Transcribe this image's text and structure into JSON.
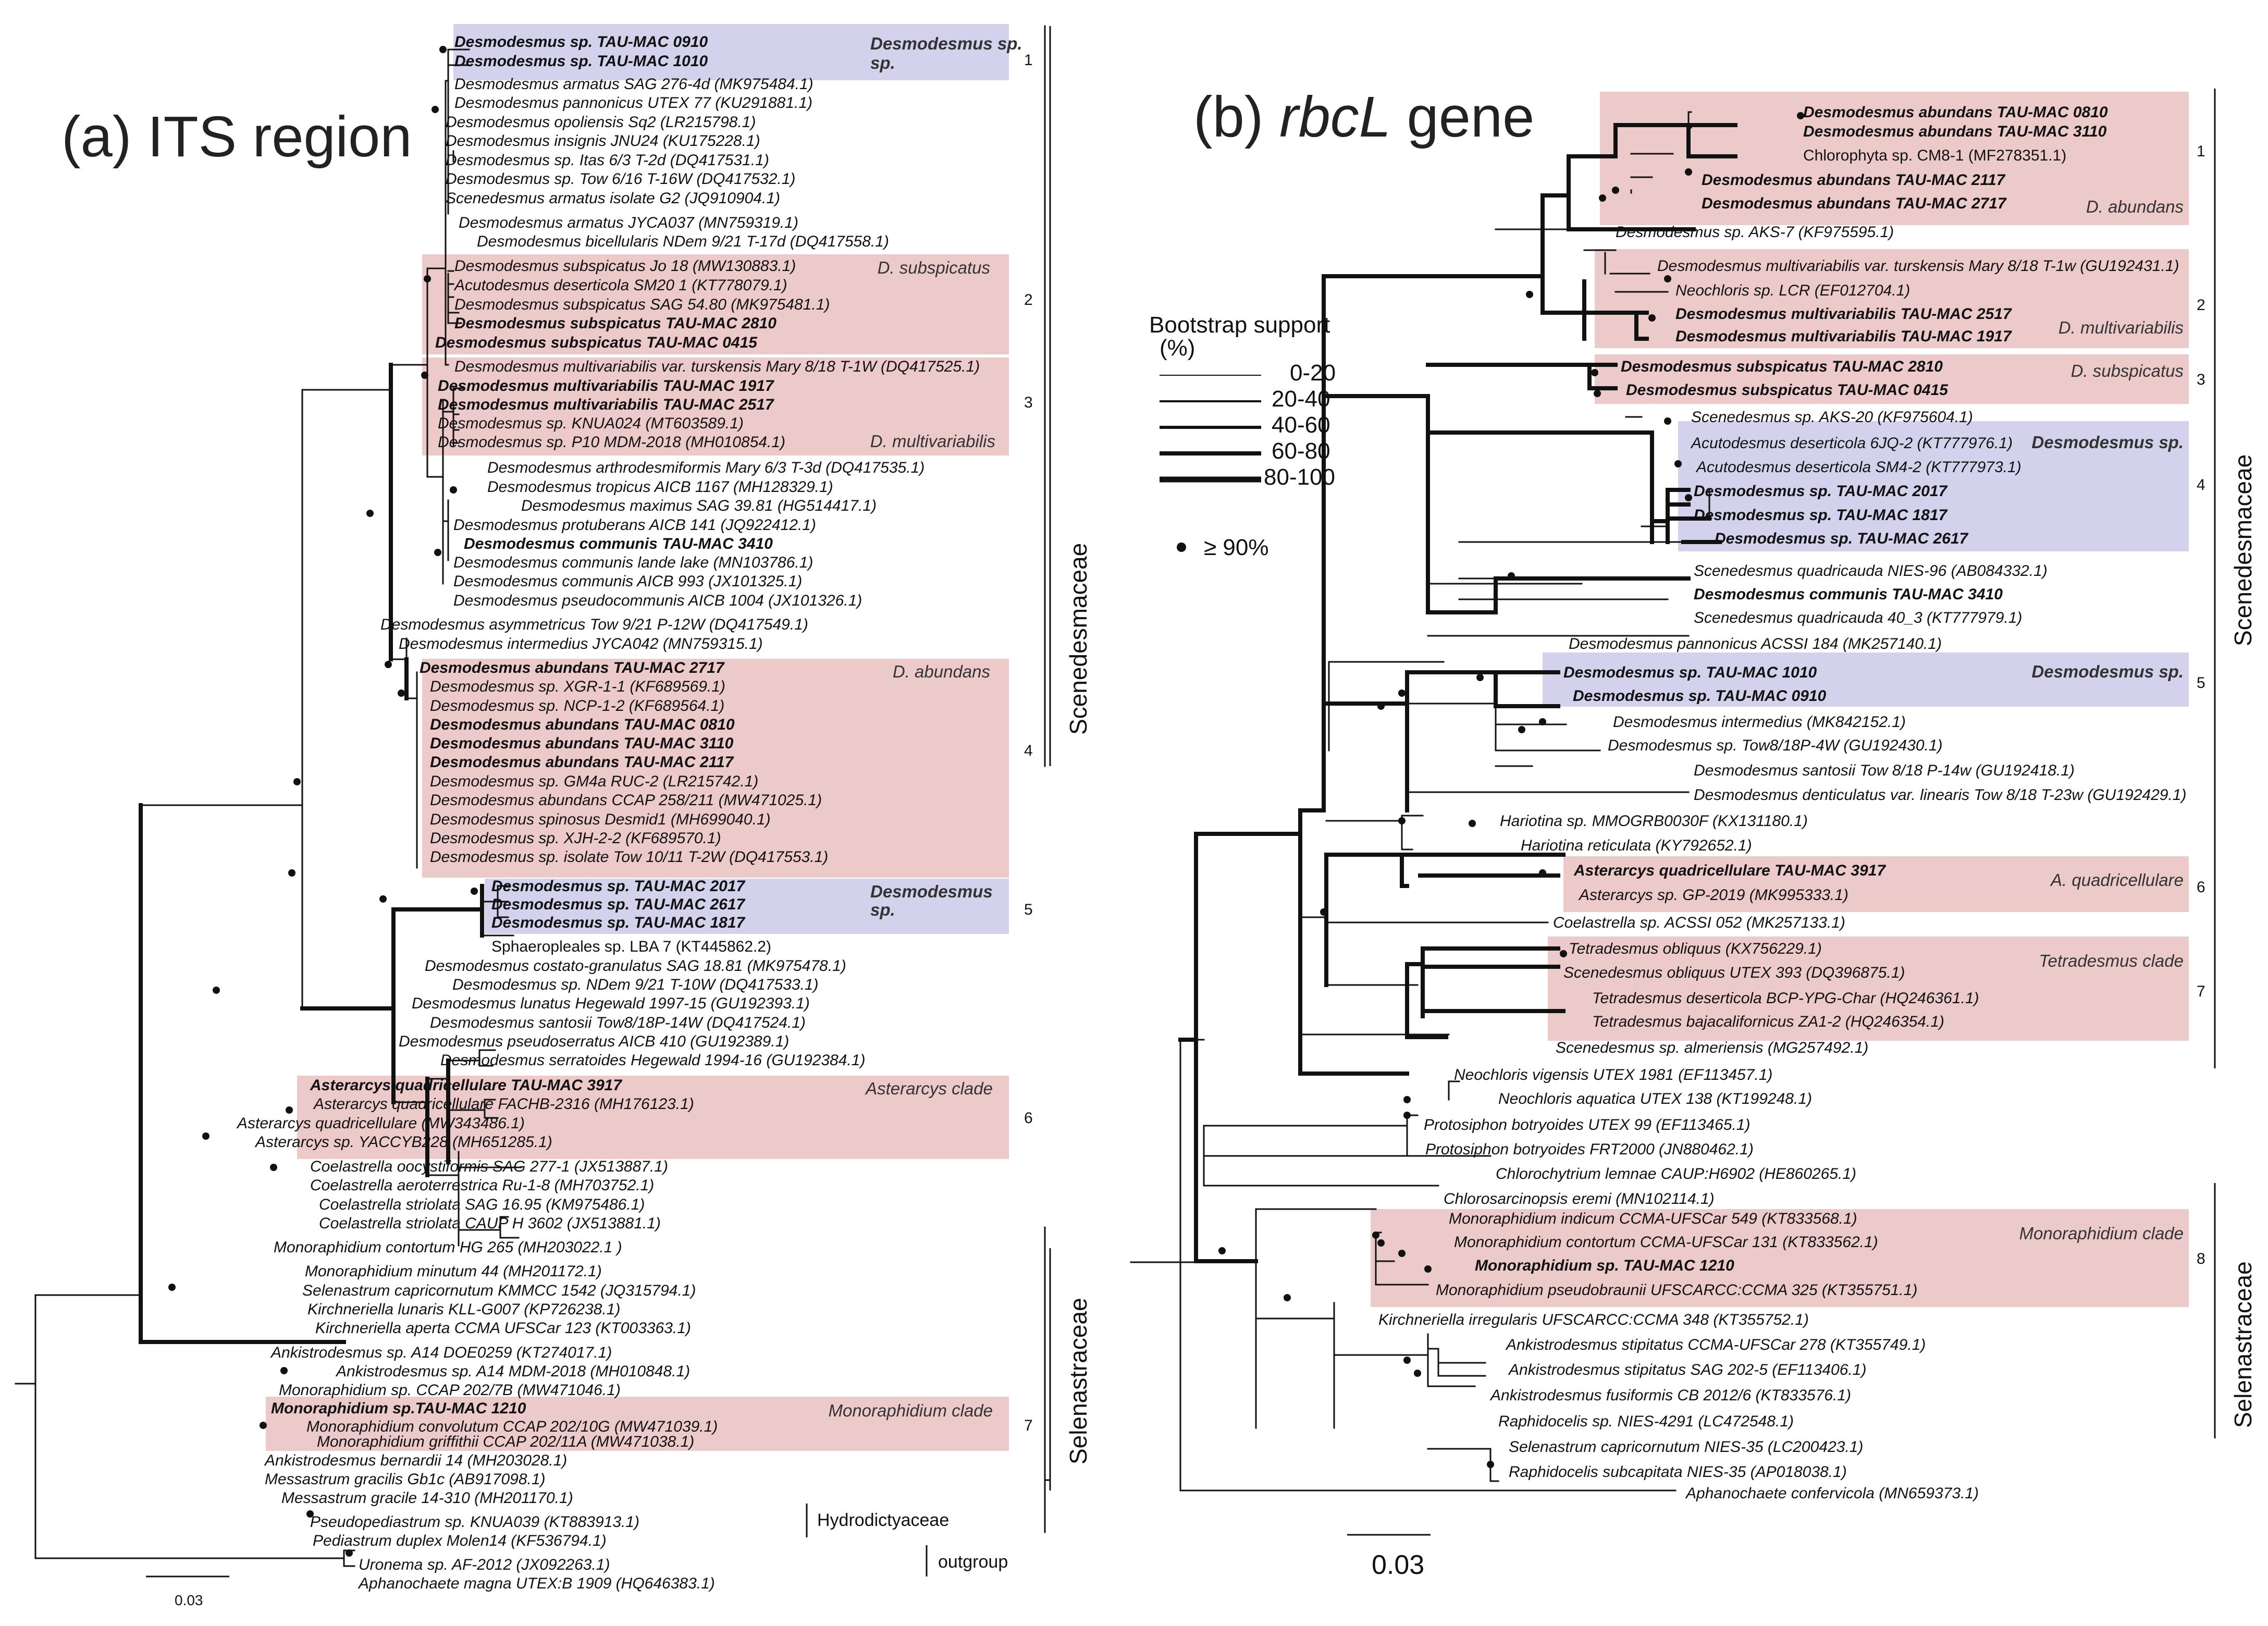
{
  "colors": {
    "pink": "#eccaca",
    "blue": "#d4d1ec",
    "line": "#111111"
  },
  "panel_a": {
    "title_prefix": "(a) ",
    "title_main": "ITS region",
    "scale_label": "0.03",
    "leaves": [
      "Desmodesmus sp. TAU-MAC 0910",
      "Desmodesmus sp. TAU-MAC 1010",
      "Desmodesmus armatus SAG 276-4d (MK975484.1)",
      "Desmodesmus pannonicus UTEX 77 (KU291881.1)",
      "Desmodesmus opoliensis Sq2 (LR215798.1)",
      "Desmodesmus insignis JNU24 (KU175228.1)",
      "Desmodesmus sp. Itas 6/3 T-2d (DQ417531.1)",
      "Desmodesmus sp. Tow 6/16 T-16W (DQ417532.1)",
      "Scenedesmus armatus isolate G2 (JQ910904.1)",
      "Desmodesmus armatus JYCA037 (MN759319.1)",
      "Desmodesmus bicellularis NDem 9/21 T-17d (DQ417558.1)",
      "Desmodesmus subspicatus Jo 18 (MW130883.1)",
      "Acutodesmus deserticola SM20 1 (KT778079.1)",
      "Desmodesmus subspicatus SAG 54.80 (MK975481.1)",
      "Desmodesmus subspicatus TAU-MAC 2810",
      "Desmodesmus subspicatus TAU-MAC 0415",
      "Desmodesmus multivariabilis var. turskensis Mary 8/18 T-1W (DQ417525.1)",
      "Desmodesmus multivariabilis TAU-MAC 1917",
      "Desmodesmus multivariabilis TAU-MAC 2517",
      "Desmodesmus sp. KNUA024 (MT603589.1)",
      "Desmodesmus sp. P10 MDM-2018 (MH010854.1)",
      "Desmodesmus arthrodesmiformis Mary 6/3 T-3d (DQ417535.1)",
      "Desmodesmus tropicus AICB 1167 (MH128329.1)",
      "Desmodesmus maximus SAG 39.81 (HG514417.1)",
      "Desmodesmus protuberans AICB 141 (JQ922412.1)",
      "Desmodesmus communis TAU-MAC 3410",
      "Desmodesmus communis lande lake (MN103786.1)",
      "Desmodesmus communis AICB 993 (JX101325.1)",
      "Desmodesmus pseudocommunis AICB 1004 (JX101326.1)",
      "Desmodesmus asymmetricus Tow 9/21 P-12W (DQ417549.1)",
      "Desmodesmus intermedius JYCA042 (MN759315.1)",
      "Desmodesmus abundans TAU-MAC 2717",
      "Desmodesmus sp. XGR-1-1 (KF689569.1)",
      "Desmodesmus sp. NCP-1-2 (KF689564.1)",
      "Desmodesmus abundans TAU-MAC 0810",
      "Desmodesmus abundans TAU-MAC 3110",
      "Desmodesmus abundans TAU-MAC 2117",
      "Desmodesmus sp. GM4a RUC-2 (LR215742.1)",
      "Desmodesmus abundans CCAP 258/211 (MW471025.1)",
      "Desmodesmus spinosus Desmid1 (MH699040.1)",
      "Desmodesmus sp. XJH-2-2 (KF689570.1)",
      "Desmodesmus sp. isolate Tow 10/11 T-2W (DQ417553.1)",
      "Desmodesmus sp. TAU-MAC 2017",
      "Desmodesmus sp. TAU-MAC 2617",
      "Desmodesmus sp. TAU-MAC 1817",
      "Sphaeropleales sp. LBA 7 (KT445862.2)",
      "Desmodesmus costato-granulatus SAG 18.81 (MK975478.1)",
      "Desmodesmus sp. NDem 9/21 T-10W (DQ417533.1)",
      "Desmodesmus lunatus Hegewald 1997-15 (GU192393.1)",
      "Desmodesmus santosii Tow8/18P-14W (DQ417524.1)",
      "Desmodesmus pseudoserratus AICB 410 (GU192389.1)",
      "Desmodesmus serratoides Hegewald 1994-16 (GU192384.1)",
      "Asterarcys quadricellulare TAU-MAC 3917",
      "Asterarcys quadricellulare FACHB-2316 (MH176123.1)",
      "Asterarcys quadricellulare (MW343486.1)",
      "Asterarcys sp. YACCYB228 (MH651285.1)",
      "Coelastrella oocystiformis SAG 277-1 (JX513887.1)",
      "Coelastrella aeroterrestrica Ru-1-8 (MH703752.1)",
      "Coelastrella striolata SAG 16.95 (KM975486.1)",
      "Coelastrella striolata CAUP H 3602 (JX513881.1)",
      "Monoraphidium contortum HG 265 (MH203022.1 )",
      "Monoraphidium minutum 44 (MH201172.1)",
      "Selenastrum capricornutum KMMCC 1542 (JQ315794.1)",
      "Kirchneriella lunaris KLL-G007 (KP726238.1)",
      "Kirchneriella aperta CCMA UFSCar 123 (KT003363.1)",
      "Ankistrodesmus sp. A14 DOE0259 (KT274017.1)",
      "Ankistrodesmus sp. A14 MDM-2018 (MH010848.1)",
      "Monoraphidium sp. CCAP 202/7B (MW471046.1)",
      "Monoraphidium sp.TAU-MAC 1210",
      "Monoraphidium convolutum CCAP 202/10G (MW471039.1)",
      "Monoraphidium griffithii CCAP 202/11A (MW471038.1)",
      "Ankistrodesmus bernardii 14 (MH203028.1)",
      "Messastrum gracilis Gb1c (AB917098.1)",
      "Messastrum gracile 14-310 (MH201170.1)",
      "Pseudopediastrum sp. KNUA039 (KT883913.1)",
      "Pediastrum duplex Molen14 (KF536794.1)",
      "Uronema sp. AF-2012 (JX092263.1)",
      "Aphanochaete magna UTEX:B 1909 (HQ646383.1)"
    ],
    "box_labels": [
      "Desmodesmus sp.",
      "D. subspicatus",
      "D. multivariabilis",
      "D. abundans",
      "Desmodesmus sp.",
      "Asterarcys clade",
      "Monoraphidium clade"
    ],
    "clade_numbers": [
      "1",
      "2",
      "3",
      "4",
      "5",
      "6",
      "7"
    ],
    "families": [
      "Scenedesmaceae",
      "Selenastraceae",
      "Hydrodictyaceae",
      "outgroup"
    ]
  },
  "panel_b": {
    "title_prefix": "(b) ",
    "title_gene": "rbcL",
    "title_suffix": " gene",
    "scale_label": "0.03",
    "leaves": [
      "Desmodesmus abundans TAU-MAC 0810",
      "Desmodesmus abundans TAU-MAC 3110",
      "Chlorophyta sp. CM8-1 (MF278351.1)",
      "Desmodesmus abundans TAU-MAC 2117",
      "Desmodesmus abundans TAU-MAC 2717",
      "Desmodesmus sp. AKS-7 (KF975595.1)",
      "Desmodesmus multivariabilis var. turskensis Mary 8/18 T-1w (GU192431.1)",
      "Neochloris sp. LCR (EF012704.1)",
      "Desmodesmus multivariabilis TAU-MAC 2517",
      "Desmodesmus multivariabilis TAU-MAC 1917",
      "Desmodesmus subspicatus TAU-MAC 2810",
      "Desmodesmus subspicatus TAU-MAC 0415",
      "Scenedesmus sp. AKS-20 (KF975604.1)",
      "Acutodesmus deserticola 6JQ-2 (KT777976.1)",
      "Acutodesmus deserticola SM4-2 (KT777973.1)",
      "Desmodesmus sp. TAU-MAC 2017",
      "Desmodesmus sp. TAU-MAC 1817",
      "Desmodesmus sp. TAU-MAC 2617",
      "Scenedesmus quadricauda NIES-96 (AB084332.1)",
      "Desmodesmus communis TAU-MAC 3410",
      "Scenedesmus quadricauda 40_3 (KT777979.1)",
      "Desmodesmus pannonicus ACSSI 184 (MK257140.1)",
      "Desmodesmus sp. TAU-MAC 1010",
      "Desmodesmus sp. TAU-MAC 0910",
      "Desmodesmus intermedius (MK842152.1)",
      "Desmodesmus sp. Tow8/18P-4W (GU192430.1)",
      "Desmodesmus santosii Tow 8/18 P-14w (GU192418.1)",
      "Desmodesmus denticulatus var. linearis Tow 8/18 T-23w (GU192429.1)",
      "Hariotina sp. MMOGRB0030F (KX131180.1)",
      "Hariotina reticulata (KY792652.1)",
      "Asterarcys quadricellulare TAU-MAC 3917",
      "Asterarcys sp. GP-2019 (MK995333.1)",
      "Coelastrella sp. ACSSI 052 (MK257133.1)",
      "Tetradesmus obliquus (KX756229.1)",
      "Scenedesmus obliquus UTEX 393 (DQ396875.1)",
      "Tetradesmus deserticola BCP-YPG-Char (HQ246361.1)",
      "Tetradesmus bajacalifornicus ZA1-2 (HQ246354.1)",
      "Scenedesmus sp. almeriensis (MG257492.1)",
      "Neochloris vigensis UTEX 1981 (EF113457.1)",
      "Neochloris aquatica UTEX 138 (KT199248.1)",
      "Protosiphon botryoides UTEX 99 (EF113465.1)",
      "Protosiphon botryoides FRT2000 (JN880462.1)",
      "Chlorochytrium lemnae CAUP:H6902 (HE860265.1)",
      "Chlorosarcinopsis eremi (MN102114.1)",
      "Monoraphidium indicum CCMA-UFSCar 549 (KT833568.1)",
      "Monoraphidium contortum CCMA-UFSCar 131 (KT833562.1)",
      "Monoraphidium sp. TAU-MAC 1210",
      "Monoraphidium pseudobraunii UFSCARCC:CCMA 325 (KT355751.1)",
      "Kirchneriella irregularis UFSCARCC:CCMA 348 (KT355752.1)",
      "Ankistrodesmus stipitatus CCMA-UFSCar 278 (KT355749.1)",
      "Ankistrodesmus stipitatus SAG 202-5 (EF113406.1)",
      "Ankistrodesmus fusiformis CB 2012/6 (KT833576.1)",
      "Raphidocelis sp. NIES-4291 (LC472548.1)",
      "Selenastrum capricornutum NIES-35 (LC200423.1)",
      "Raphidocelis subcapitata NIES-35 (AP018038.1)",
      "Aphanochaete confervicola (MN659373.1)"
    ],
    "box_labels": [
      "D. abundans",
      "D. multivariabilis",
      "D. subspicatus",
      "Desmodesmus sp.",
      "Desmodesmus sp.",
      "A. quadricellulare",
      "Tetradesmus clade",
      "Monoraphidium clade"
    ],
    "clade_numbers": [
      "1",
      "2",
      "3",
      "4",
      "5",
      "6",
      "7",
      "8"
    ],
    "families": [
      "Scenedesmaceae",
      "Selenastraceae"
    ]
  },
  "legend": {
    "title_line1": "Bootstrap support",
    "title_line2": "(%)",
    "ranges": [
      "0-20",
      "20-40",
      "40-60",
      "60-80",
      "80-100"
    ],
    "dot_label": "≥ 90%"
  }
}
